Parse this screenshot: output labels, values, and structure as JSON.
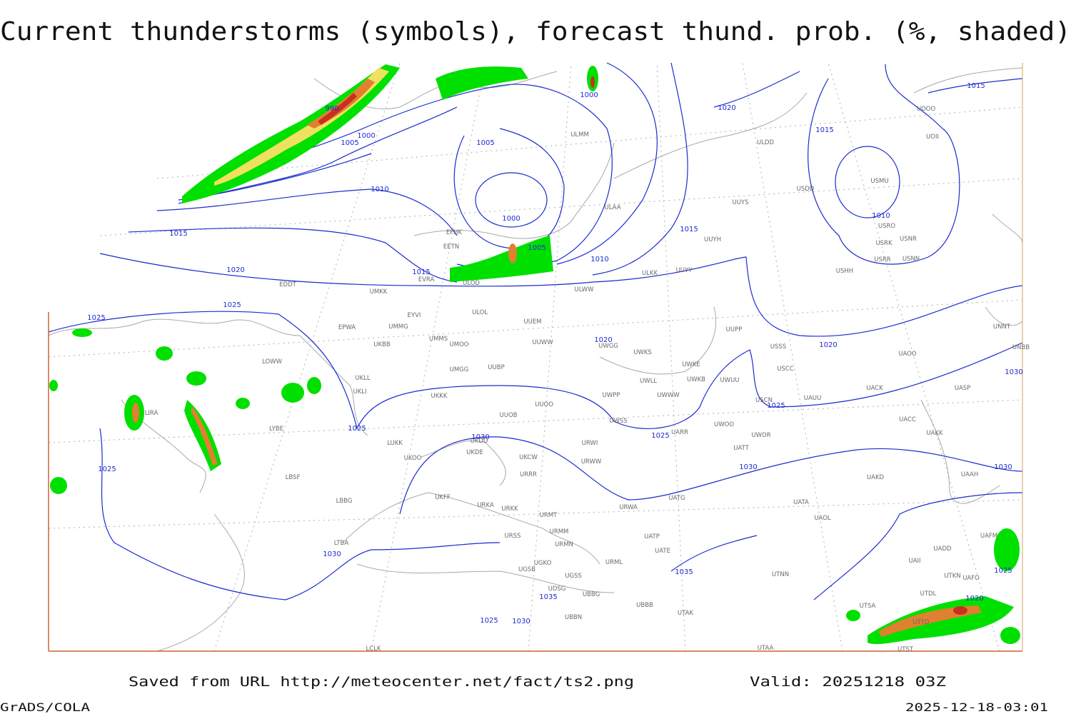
{
  "title": "Current thunderstorms (symbols), forecast thund. prob. (%, shaded)",
  "footer": {
    "source": "Saved from URL http://meteocenter.net/fact/ts2.png",
    "valid": "Valid: 20251218 03Z",
    "credit": "GrADS/COLA",
    "timestamp": "2025-12-18-03:01"
  },
  "isobar_labels": [
    "990",
    "1000",
    "1005",
    "1005",
    "1000",
    "1010",
    "1000",
    "1005",
    "1010",
    "1015",
    "1015",
    "1020",
    "1015",
    "1020",
    "1015",
    "1010",
    "1015",
    "1025",
    "1025",
    "1020",
    "1020",
    "1025",
    "1025",
    "1025",
    "1030",
    "1030",
    "1030",
    "1030",
    "1025",
    "1030",
    "1035",
    "1035",
    "1025",
    "1030",
    "1025",
    "1020"
  ],
  "stations": [
    "ULDD",
    "USMU",
    "USDD",
    "ULMM",
    "ULAA",
    "UUYS",
    "USRO",
    "USRK",
    "USNR",
    "USRR",
    "USNN",
    "USHH",
    "UUYH",
    "EFHK",
    "EETN",
    "EVRA",
    "ULOD",
    "ULWW",
    "ULKK",
    "UUYY",
    "EDDT",
    "UMKK",
    "EYVI",
    "ULOL",
    "UUEM",
    "EPWA",
    "UMMG",
    "UMMS",
    "UMOO",
    "UUWW",
    "UWGG",
    "UWKS",
    "UUPP",
    "USSS",
    "UNNT",
    "UNBB",
    "UKBB",
    "LOWW",
    "UMGG",
    "UUBP",
    "UWKE",
    "UWKB",
    "UWUU",
    "USCC",
    "UAOO",
    "UACK",
    "UASP",
    "UKLL",
    "UKLI",
    "UKKK",
    "UUOO",
    "UWPP",
    "UWLL",
    "UWWW",
    "USCN",
    "UAUU",
    "UACC",
    "UAKK",
    "LIRA",
    "LYBE",
    "UUOB",
    "UWSS",
    "UARR",
    "UWOO",
    "UWOR",
    "UATT",
    "LUKK",
    "UKDD",
    "UKDE",
    "UKOO",
    "UKCW",
    "URWI",
    "URWW",
    "URRR",
    "UAKD",
    "UAAH",
    "LBSF",
    "LBBG",
    "UKFF",
    "URKA",
    "URKK",
    "UATG",
    "URWA",
    "UATA",
    "URMT",
    "UAOL",
    "URSS",
    "URMM",
    "URMN",
    "UATP",
    "UATE",
    "UAFM",
    "UADD",
    "LTBA",
    "URML",
    "UGKO",
    "UGSB",
    "UGSS",
    "UTNN",
    "UTKN",
    "UAFO",
    "UAII",
    "UDSG",
    "UBBG",
    "UTDL",
    "UBBB",
    "UTAK",
    "UBBN",
    "UTSA",
    "UTTD",
    "UTAA",
    "UTST",
    "LCLK",
    "UOOO",
    "UOII"
  ]
}
